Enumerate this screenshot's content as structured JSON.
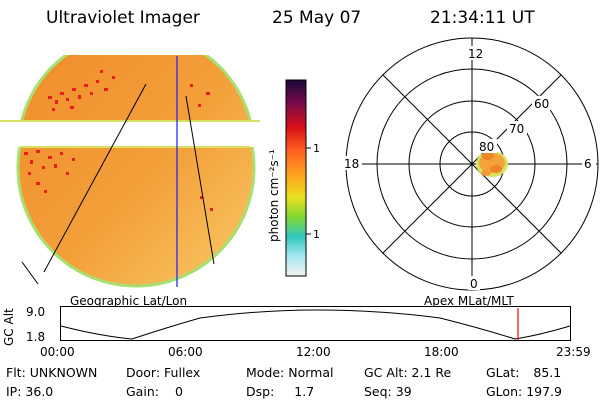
{
  "header": {
    "title": "Ultraviolet Imager",
    "date": "25 May 07",
    "time": "21:34:11 UT"
  },
  "colorbar": {
    "unit_label": "photon cm⁻²s⁻¹",
    "tick_100": "100",
    "tick_10": "10"
  },
  "left_image": {
    "label": "Geographic Lat/Lon"
  },
  "polar_plot": {
    "label": "Apex MLat/MLT",
    "mlt_labels": {
      "top": "12",
      "bottom": "0",
      "left": "18",
      "right": "6"
    },
    "lat_labels": {
      "r60": "60",
      "r70": "70",
      "r80": "80"
    }
  },
  "altitude_strip": {
    "axis_label": "GC Alt",
    "tick_top": "9.0",
    "tick_bottom": "1.8",
    "time_ticks": [
      "00:00",
      "06:00",
      "12:00",
      "18:00",
      "23:59"
    ],
    "marker_color": "#ff0000"
  },
  "info": {
    "flt_label": "Flt:",
    "flt_value": "UNKNOWN",
    "door_label": "Door:",
    "door_value": "Fullex",
    "mode_label": "Mode:",
    "mode_value": "Normal",
    "gcalt_label": "GC Alt:",
    "gcalt_value": "2.1 Re",
    "glat_label": "GLat:",
    "glat_value": "85.1",
    "ip_label": "IP:",
    "ip_value": "36.0",
    "gain_label": "Gain:",
    "gain_value": "0",
    "dsp_label": "Dsp:",
    "dsp_value": "1.7",
    "seq_label": "Seq:",
    "seq_value": "39",
    "glon_label": "GLon:",
    "glon_value": "197.9"
  }
}
